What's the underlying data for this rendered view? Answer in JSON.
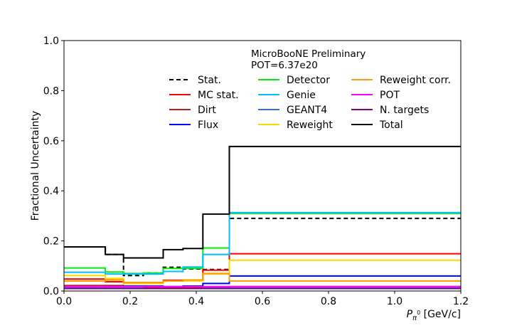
{
  "chart_data": {
    "type": "line",
    "step": true,
    "title": "",
    "annotations": [
      "MicroBooNE Preliminary",
      "POT=6.37e20"
    ],
    "xlabel": "P_π⁰ [GeV/c]",
    "xlabel_parts": {
      "var": "P",
      "sub": "π",
      "subsup": "0",
      "unit": " [GeV/c]"
    },
    "ylabel": "Fractional Uncertainty",
    "xlim": [
      0.0,
      1.2
    ],
    "ylim": [
      0.0,
      1.0
    ],
    "xticks": [
      "0.0",
      "0.2",
      "0.4",
      "0.6",
      "0.8",
      "1.0",
      "1.2"
    ],
    "yticks": [
      "0.0",
      "0.2",
      "0.4",
      "0.6",
      "0.8",
      "1.0"
    ],
    "grid": false,
    "legend": {
      "placement": "top-right",
      "columns": 3
    },
    "bin_edges": [
      0.0,
      0.125,
      0.18,
      0.24,
      0.3,
      0.36,
      0.42,
      0.5,
      1.2
    ],
    "series": [
      {
        "name": "Stat.",
        "color": "#000000",
        "dashed": true,
        "values": [
          0.176,
          0.146,
          0.062,
          0.072,
          0.095,
          0.088,
          0.086,
          0.29
        ]
      },
      {
        "name": "MC stat.",
        "color": "#ff0000",
        "dashed": false,
        "values": [
          0.048,
          0.037,
          0.03,
          0.03,
          0.043,
          0.043,
          0.083,
          0.149
        ]
      },
      {
        "name": "Dirt",
        "color": "#b22222",
        "dashed": false,
        "values": [
          0.022,
          0.022,
          0.018,
          0.015,
          0.014,
          0.014,
          0.014,
          0.018
        ]
      },
      {
        "name": "Flux",
        "color": "#0000ff",
        "dashed": false,
        "values": [
          0.012,
          0.018,
          0.02,
          0.02,
          0.018,
          0.02,
          0.03,
          0.06
        ]
      },
      {
        "name": "Detector",
        "color": "#00ee00",
        "dashed": false,
        "values": [
          0.092,
          0.076,
          0.07,
          0.072,
          0.09,
          0.09,
          0.172,
          0.31
        ]
      },
      {
        "name": "Genie",
        "color": "#00bfff",
        "dashed": false,
        "values": [
          0.075,
          0.068,
          0.068,
          0.068,
          0.078,
          0.096,
          0.146,
          0.313
        ]
      },
      {
        "name": "GEANT4",
        "color": "#3a6fd8",
        "dashed": false,
        "values": [
          0.012,
          0.012,
          0.012,
          0.01,
          0.01,
          0.01,
          0.012,
          0.012
        ]
      },
      {
        "name": "Reweight",
        "color": "#ffd700",
        "dashed": false,
        "values": [
          0.062,
          0.05,
          0.03,
          0.03,
          0.04,
          0.04,
          0.068,
          0.123
        ]
      },
      {
        "name": "Reweight corr.",
        "color": "#ff9900",
        "dashed": false,
        "values": [
          0.04,
          0.044,
          0.034,
          0.034,
          0.04,
          0.044,
          0.07,
          0.04
        ]
      },
      {
        "name": "POT",
        "color": "#ff00ff",
        "dashed": false,
        "values": [
          0.018,
          0.018,
          0.018,
          0.018,
          0.018,
          0.018,
          0.018,
          0.018
        ]
      },
      {
        "name": "N. targets",
        "color": "#800080",
        "dashed": false,
        "values": [
          0.01,
          0.01,
          0.01,
          0.01,
          0.01,
          0.01,
          0.01,
          0.01
        ]
      },
      {
        "name": "Total",
        "color": "#000000",
        "dashed": false,
        "values": [
          0.176,
          0.146,
          0.132,
          0.132,
          0.165,
          0.17,
          0.307,
          0.577
        ]
      }
    ]
  }
}
